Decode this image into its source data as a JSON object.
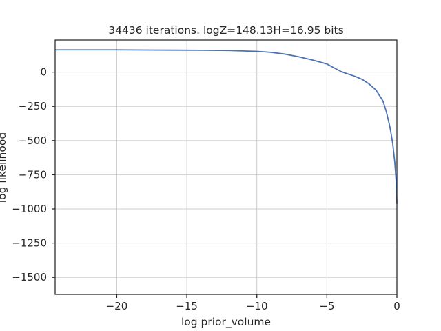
{
  "chart_data": {
    "type": "line",
    "title": "34436 iterations. logZ=148.13H=16.95 bits",
    "xlabel": "log prior_volume",
    "ylabel": "log likelihood",
    "xlim": [
      -24.4,
      0
    ],
    "ylim": [
      -1625,
      235
    ],
    "grid": true,
    "xticks": [
      -20,
      -15,
      -10,
      -5,
      0
    ],
    "xtick_labels": [
      "−20",
      "−15",
      "−10",
      "−5",
      "0"
    ],
    "yticks": [
      0,
      -250,
      -500,
      -750,
      -1000,
      -1250,
      -1500
    ],
    "ytick_labels": [
      "0",
      "−250",
      "−500",
      "−750",
      "−1000",
      "−1250",
      "−1500"
    ],
    "colors": {
      "series": "#4c72b0",
      "axes": "#262626",
      "grid": "#cccccc"
    },
    "series": [
      {
        "x": [
          -24.4,
          -20,
          -18,
          -16,
          -14,
          -12,
          -10,
          -9,
          -8,
          -7,
          -6,
          -5,
          -4.5,
          -4,
          -3.6,
          -3,
          -2.5,
          -2,
          -1.5,
          -1,
          -0.75,
          -0.5,
          -0.3,
          -0.15,
          -0.05,
          0
        ],
        "y": [
          163,
          163,
          162,
          161,
          160,
          158,
          152,
          145,
          132,
          112,
          88,
          60,
          32,
          5,
          -10,
          -30,
          -52,
          -85,
          -130,
          -210,
          -290,
          -400,
          -520,
          -660,
          -800,
          -960
        ]
      }
    ]
  }
}
